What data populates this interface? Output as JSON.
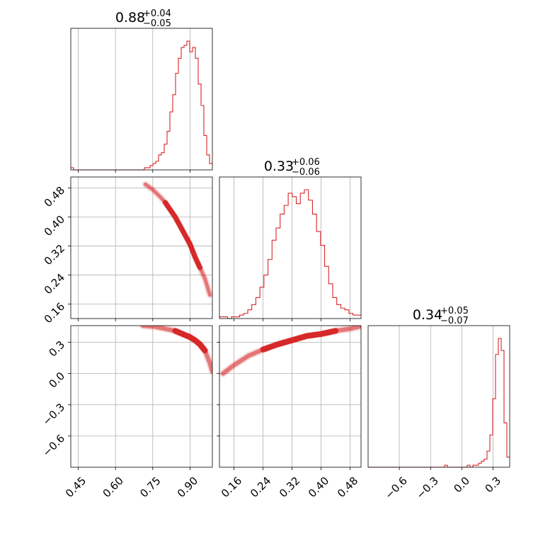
{
  "chart_data": {
    "type": "corner",
    "color": "#d62728",
    "grid": true,
    "parameters": [
      {
        "name": "",
        "median": "0.88",
        "plus": "+0.04",
        "minus": "−0.05",
        "range": [
          0.42,
          0.99
        ]
      },
      {
        "name": "",
        "median": "0.33",
        "plus": "+0.06",
        "minus": "−0.06",
        "range": [
          0.12,
          0.51
        ]
      },
      {
        "name": "",
        "median": "0.34",
        "plus": "+0.05",
        "minus": "−0.07",
        "range": [
          -0.9,
          0.46
        ]
      }
    ],
    "ticks": [
      {
        "values": [
          0.45,
          0.6,
          0.75,
          0.9
        ],
        "labels": [
          "0.45",
          "0.60",
          "0.75",
          "0.90"
        ]
      },
      {
        "values": [
          0.16,
          0.24,
          0.32,
          0.4,
          0.48
        ],
        "labels": [
          "0.16",
          "0.24",
          "0.32",
          "0.40",
          "0.48"
        ]
      },
      {
        "values": [
          -0.6,
          -0.3,
          0.0,
          0.3
        ],
        "labels": [
          "−0.6",
          "−0.3",
          "0.0",
          "0.3"
        ]
      }
    ],
    "histograms": [
      {
        "bin_edges_range": [
          0.42,
          0.99
        ],
        "counts": [
          1,
          0,
          0,
          0,
          0,
          0,
          0,
          0,
          0,
          0,
          0,
          0,
          0,
          0,
          0,
          0,
          0,
          0,
          0,
          0,
          0,
          0,
          0,
          0,
          0,
          0,
          1,
          1,
          2,
          3,
          4,
          7,
          8,
          12,
          18,
          27,
          35,
          45,
          52,
          57,
          58,
          60,
          55,
          57,
          52,
          40,
          30,
          16,
          7,
          3
        ]
      },
      {
        "bin_edges_range": [
          0.12,
          0.51
        ],
        "counts": [
          1,
          1,
          0,
          1,
          1,
          2,
          3,
          5,
          8,
          12,
          18,
          25,
          34,
          45,
          52,
          60,
          65,
          72,
          70,
          66,
          72,
          74,
          68,
          60,
          50,
          42,
          30,
          20,
          12,
          8,
          6,
          5,
          3,
          2,
          2
        ]
      },
      {
        "bin_edges_range": [
          -0.9,
          0.46
        ],
        "counts": [
          0,
          0,
          0,
          0,
          0,
          0,
          0,
          0,
          0,
          0,
          0,
          0,
          0,
          0,
          0,
          0,
          0,
          0,
          0,
          0,
          0,
          0,
          0,
          0,
          0,
          0,
          0,
          1,
          0,
          0,
          0,
          0,
          0,
          0,
          0,
          1,
          0,
          1,
          1,
          2,
          3,
          4,
          8,
          16,
          34,
          56,
          64,
          58,
          22,
          5
        ]
      }
    ],
    "relations": {
      "p2_vs_p1": {
        "x": [
          0.72,
          0.75,
          0.78,
          0.8,
          0.82,
          0.84,
          0.86,
          0.88,
          0.9,
          0.92,
          0.94,
          0.96,
          0.98
        ],
        "y": [
          0.49,
          0.475,
          0.455,
          0.44,
          0.42,
          0.4,
          0.375,
          0.35,
          0.325,
          0.29,
          0.26,
          0.23,
          0.185
        ]
      },
      "p3_vs_p1": {
        "x": [
          0.71,
          0.76,
          0.8,
          0.84,
          0.87,
          0.9,
          0.92,
          0.94,
          0.96,
          0.98,
          0.99
        ],
        "y": [
          0.46,
          0.45,
          0.43,
          0.41,
          0.38,
          0.35,
          0.32,
          0.28,
          0.22,
          0.1,
          0.02
        ]
      },
      "p3_vs_p2": {
        "x": [
          0.13,
          0.16,
          0.2,
          0.24,
          0.28,
          0.32,
          0.36,
          0.4,
          0.44,
          0.48,
          0.505
        ],
        "y": [
          0.0,
          0.08,
          0.17,
          0.23,
          0.28,
          0.32,
          0.36,
          0.38,
          0.41,
          0.43,
          0.45
        ]
      }
    }
  }
}
